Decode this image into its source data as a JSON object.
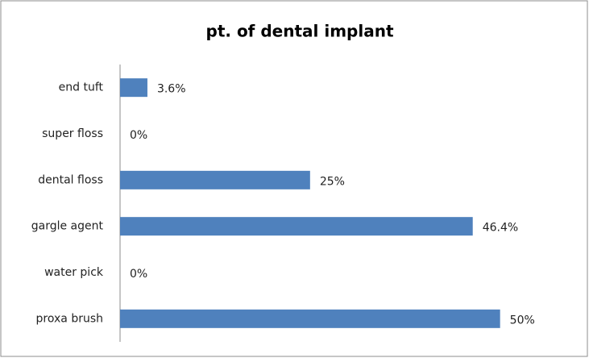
{
  "chart_data": {
    "type": "barh",
    "title": "pt. of dental implant",
    "categories": [
      "end tuft",
      "super floss",
      "dental floss",
      "gargle agent",
      "water pick",
      "proxa brush"
    ],
    "values": [
      3.6,
      0,
      25,
      46.4,
      0,
      50
    ],
    "value_labels": [
      "3.6%",
      "0%",
      "25%",
      "46.4%",
      "0%",
      "50%"
    ],
    "color": "#4f81bd",
    "xlim": [
      0,
      60
    ]
  }
}
